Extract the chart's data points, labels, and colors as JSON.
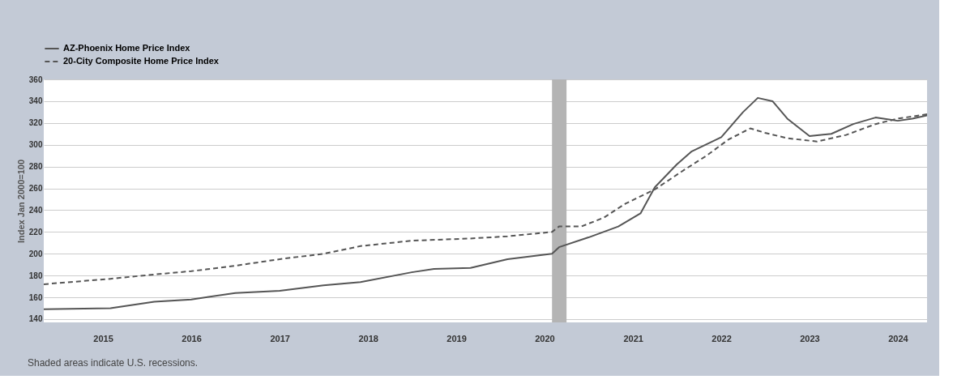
{
  "chart_data": {
    "type": "line",
    "ylabel": "Index Jan 2000=100",
    "xlim": [
      "2014-05",
      "2024-05"
    ],
    "xticks": [
      "2015",
      "2016",
      "2017",
      "2018",
      "2019",
      "2020",
      "2021",
      "2022",
      "2023",
      "2024"
    ],
    "ylim": [
      137,
      360
    ],
    "yticks": [
      140,
      160,
      180,
      200,
      220,
      240,
      260,
      280,
      300,
      320,
      340,
      360
    ],
    "grid": "y",
    "legend": "top left",
    "bands": [
      {
        "axis": "x",
        "from": "2020-02",
        "to": "2020-04",
        "color": "#b4b4b4"
      }
    ],
    "annotations": [
      "Shaded areas indicate U.S. recessions."
    ],
    "series": [
      {
        "name": "AZ-Phoenix Home Price Index",
        "color": "#555555",
        "line_style": "solid",
        "x": [
          "2014-05",
          "2015-02",
          "2015-08",
          "2016-01",
          "2016-07",
          "2017-01",
          "2017-07",
          "2017-12",
          "2018-07",
          "2018-10",
          "2019-03",
          "2019-08",
          "2020-02",
          "2020-03",
          "2020-07",
          "2020-11",
          "2021-02",
          "2021-04",
          "2021-07",
          "2021-09",
          "2022-01",
          "2022-04",
          "2022-06",
          "2022-08",
          "2022-10",
          "2023-01",
          "2023-04",
          "2023-07",
          "2023-10",
          "2023-12",
          "2024-01",
          "2024-03",
          "2024-05"
        ],
        "values": [
          149,
          150,
          156,
          158,
          164,
          166,
          171,
          174,
          183,
          186,
          187,
          195,
          200,
          206,
          215,
          225,
          237,
          261,
          282,
          294,
          307,
          330,
          343,
          340,
          324,
          308,
          310,
          319,
          325,
          323,
          322,
          324,
          327
        ]
      },
      {
        "name": "20-City Composite Home Price Index",
        "color": "#555555",
        "line_style": "dashed",
        "x": [
          "2014-05",
          "2015-02",
          "2015-08",
          "2016-01",
          "2016-07",
          "2017-01",
          "2017-07",
          "2017-12",
          "2018-07",
          "2019-03",
          "2019-08",
          "2020-02",
          "2020-03",
          "2020-06",
          "2020-09",
          "2020-12",
          "2021-04",
          "2021-08",
          "2021-11",
          "2022-02",
          "2022-05",
          "2022-07",
          "2022-10",
          "2023-02",
          "2023-06",
          "2023-10",
          "2024-01",
          "2024-05"
        ],
        "values": [
          172,
          177,
          181,
          184,
          189,
          195,
          200,
          207,
          212,
          214,
          216,
          220,
          225,
          225,
          233,
          246,
          259,
          277,
          290,
          305,
          315,
          311,
          306,
          303,
          309,
          319,
          324,
          328
        ]
      }
    ]
  }
}
